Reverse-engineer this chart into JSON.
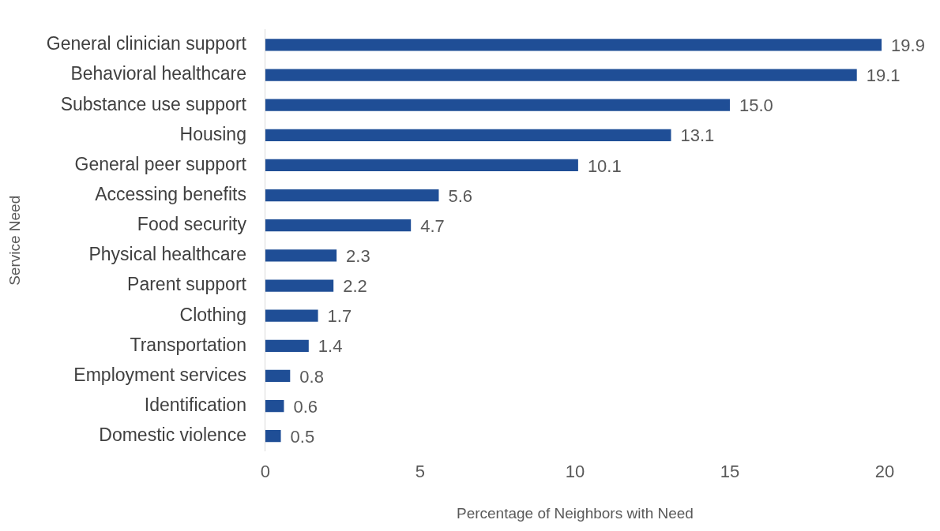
{
  "chart_data": {
    "type": "bar",
    "orientation": "horizontal",
    "xlabel": "Percentage of Neighbors with Need",
    "ylabel": "Service Need",
    "categories": [
      "General clinician support",
      "Behavioral healthcare",
      "Substance use support",
      "Housing",
      "General peer support",
      "Accessing benefits",
      "Food security",
      "Physical healthcare",
      "Parent support",
      "Clothing",
      "Transportation",
      "Employment services",
      "Identification",
      "Domestic violence"
    ],
    "values": [
      19.9,
      19.1,
      15.0,
      13.1,
      10.1,
      5.6,
      4.7,
      2.3,
      2.2,
      1.7,
      1.4,
      0.8,
      0.6,
      0.5
    ],
    "value_labels": [
      "19.9",
      "19.1",
      "15.0",
      "13.1",
      "10.1",
      "5.6",
      "4.7",
      "2.3",
      "2.2",
      "1.7",
      "1.4",
      "0.8",
      "0.6",
      "0.5"
    ],
    "color": "#1f4e96",
    "xlim": [
      0,
      20
    ],
    "xticks": [
      0,
      5,
      10,
      15,
      20
    ],
    "grid": false,
    "legend": false
  }
}
